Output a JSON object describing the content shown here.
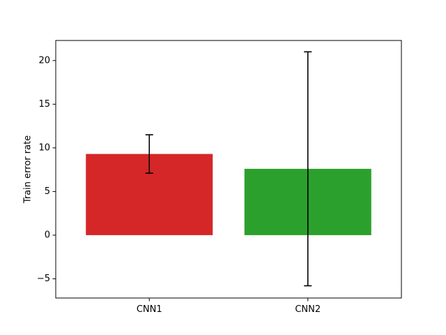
{
  "chart_data": {
    "type": "bar",
    "title": "",
    "xlabel": "",
    "ylabel": "Train error rate",
    "categories": [
      "CNN1",
      "CNN2"
    ],
    "values": [
      9.3,
      7.6
    ],
    "errors": [
      {
        "low": 7.1,
        "high": 11.5
      },
      {
        "low": -5.8,
        "high": 21.0
      }
    ],
    "colors": [
      "#d62728",
      "#2ca02c"
    ],
    "ylim": [
      -7.2,
      22.3
    ],
    "yticks": [
      -5,
      0,
      5,
      10,
      15,
      20
    ],
    "ytick_labels": [
      "−5",
      "0",
      "5",
      "10",
      "15",
      "20"
    ],
    "grid": false,
    "legend": "none"
  }
}
